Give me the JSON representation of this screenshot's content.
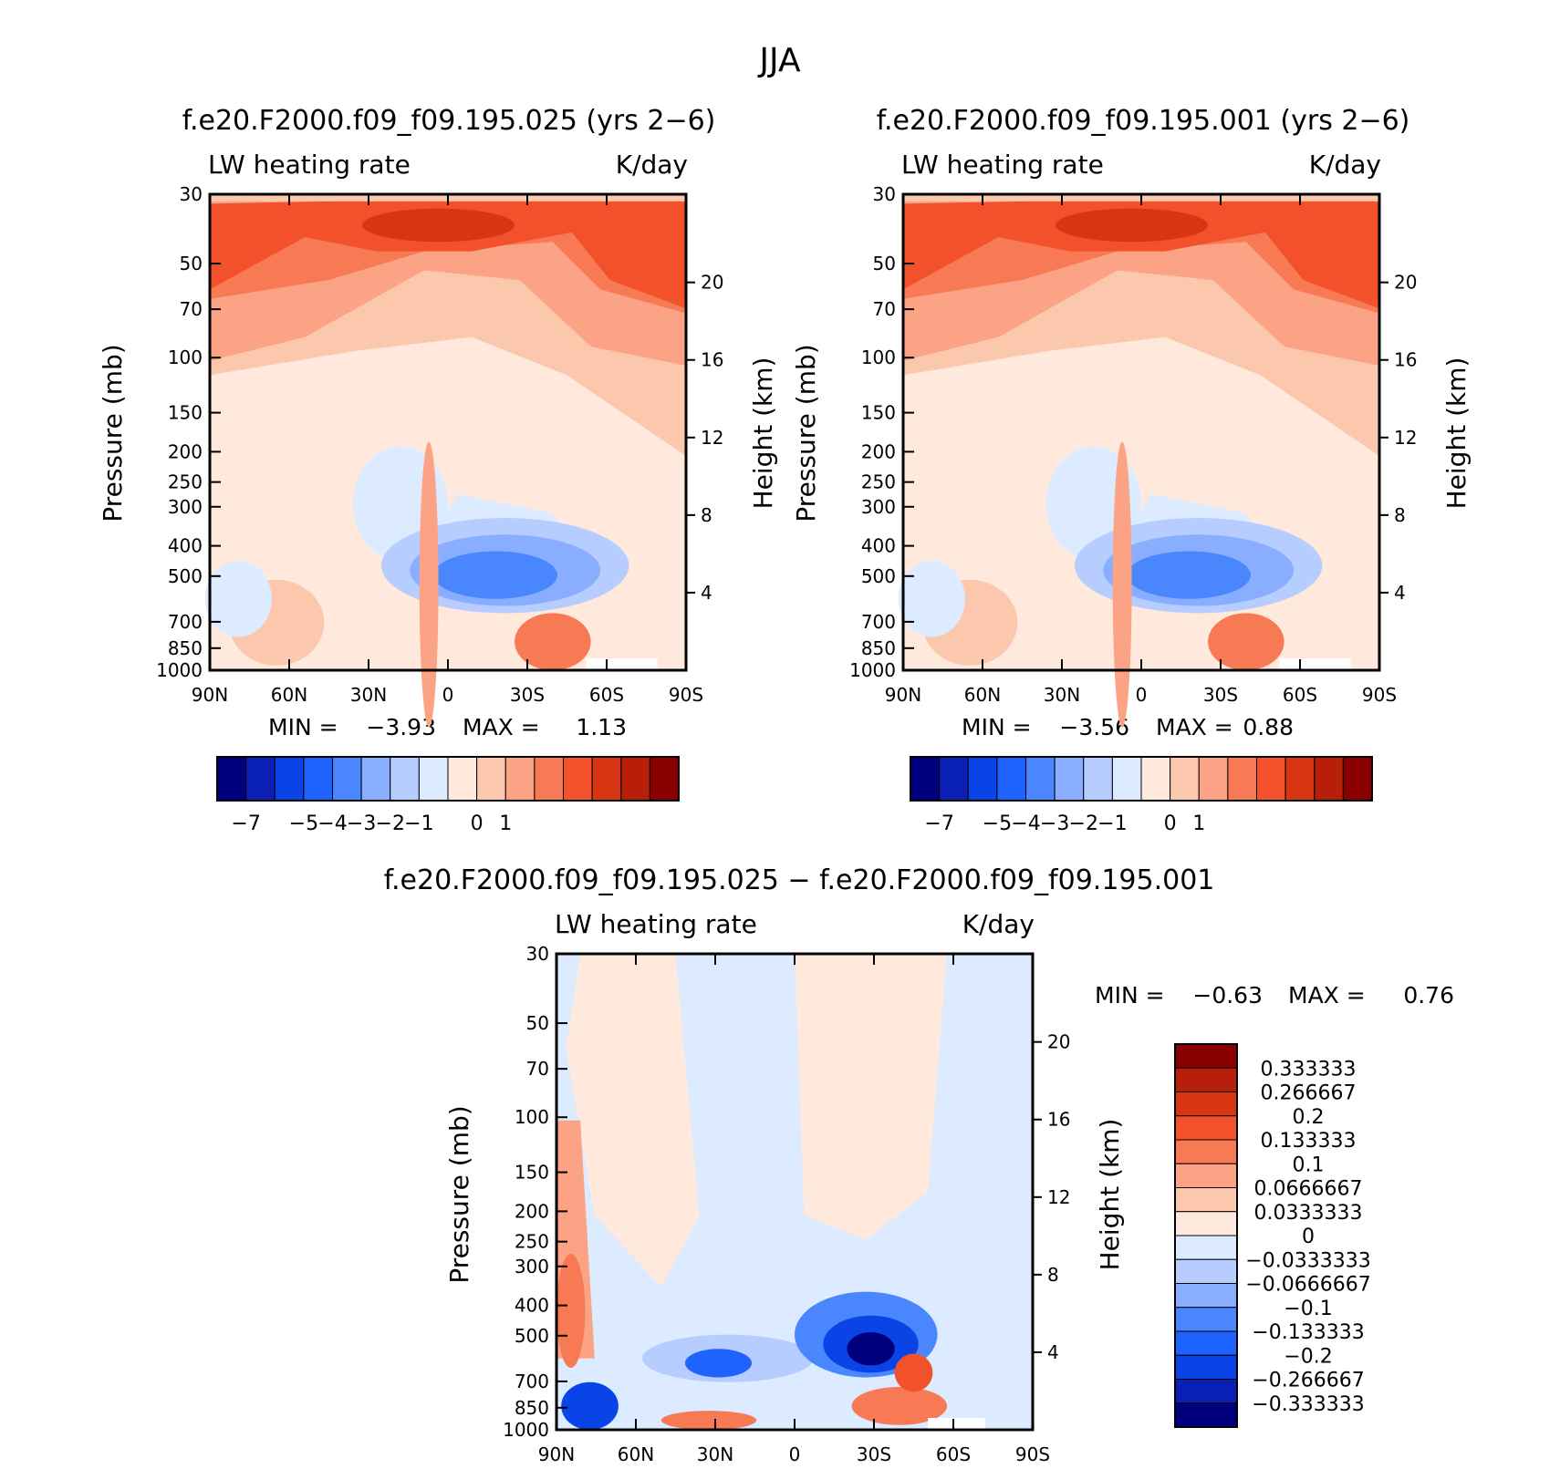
{
  "page_title": "JJA",
  "colors": {
    "abs": [
      "#00007f",
      "#0a1fb5",
      "#0a44e6",
      "#1f63ff",
      "#4a87ff",
      "#8aaeff",
      "#b7cdff",
      "#dcebff",
      "#fee9dc",
      "#fcc8ad",
      "#fba384",
      "#f77a54",
      "#f2512b",
      "#d83515",
      "#b71f0a",
      "#8a0000"
    ],
    "diff": [
      "#00007f",
      "#0a1fb5",
      "#0a44e6",
      "#1f63ff",
      "#4a87ff",
      "#8aaeff",
      "#b7cdff",
      "#dcebff",
      "#fee9dc",
      "#fcc8ad",
      "#fba384",
      "#f77a54",
      "#f2512b",
      "#d83515",
      "#b71f0a",
      "#8a0000"
    ]
  },
  "panels": [
    {
      "title": "f.e20.F2000.f09_f09.195.025 (yrs 2−6)",
      "left_label": "LW heating rate",
      "right_label": "K/day",
      "ylabel": "Pressure (mb)",
      "ylabel2": "Height (km)",
      "min_label": "MIN =",
      "min_value": "−3.93",
      "max_label": "MAX =",
      "max_value": "1.13"
    },
    {
      "title": "f.e20.F2000.f09_f09.195.001 (yrs 2−6)",
      "left_label": "LW heating rate",
      "right_label": "K/day",
      "ylabel": "Pressure (mb)",
      "ylabel2": "Height (km)",
      "min_label": "MIN =",
      "min_value": "−3.56",
      "max_label": "MAX =",
      "max_value": "0.88"
    },
    {
      "title": "f.e20.F2000.f09_f09.195.025 − f.e20.F2000.f09_f09.195.001",
      "left_label": "LW heating rate",
      "right_label": "K/day",
      "ylabel": "Pressure (mb)",
      "ylabel2": "Height (km)",
      "min_label": "MIN =",
      "min_value": "−0.63",
      "max_label": "MAX =",
      "max_value": "0.76"
    }
  ],
  "chart_data": [
    {
      "type": "heatmap",
      "title": "f.e20.F2000.f09_f09.195.025 (yrs 2−6)",
      "xlabel": "",
      "ylabel": "Pressure (mb)",
      "y2label": "Height (km)",
      "x_ticks": [
        "90N",
        "60N",
        "30N",
        "0",
        "30S",
        "60S",
        "90S"
      ],
      "y_ticks": [
        "30",
        "50",
        "70",
        "100",
        "150",
        "200",
        "250",
        "300",
        "400",
        "500",
        "700",
        "850",
        "1000"
      ],
      "y2_ticks": [
        "20",
        "16",
        "12",
        "8",
        "4"
      ],
      "colorbar_labels": [
        "−7",
        "−5",
        "−4",
        "−3",
        "−2",
        "−1",
        "0",
        "1"
      ],
      "colorbar_orientation": "horizontal",
      "y_scale": "log",
      "ylim": [
        1000,
        30
      ],
      "min": -3.93,
      "max": 1.13
    },
    {
      "type": "heatmap",
      "title": "f.e20.F2000.f09_f09.195.001 (yrs 2−6)",
      "xlabel": "",
      "ylabel": "Pressure (mb)",
      "y2label": "Height (km)",
      "x_ticks": [
        "90N",
        "60N",
        "30N",
        "0",
        "30S",
        "60S",
        "90S"
      ],
      "y_ticks": [
        "30",
        "50",
        "70",
        "100",
        "150",
        "200",
        "250",
        "300",
        "400",
        "500",
        "700",
        "850",
        "1000"
      ],
      "y2_ticks": [
        "20",
        "16",
        "12",
        "8",
        "4"
      ],
      "colorbar_labels": [
        "−7",
        "−5",
        "−4",
        "−3",
        "−2",
        "−1",
        "0",
        "1"
      ],
      "colorbar_orientation": "horizontal",
      "y_scale": "log",
      "ylim": [
        1000,
        30
      ],
      "min": -3.56,
      "max": 0.88
    },
    {
      "type": "heatmap",
      "title": "f.e20.F2000.f09_f09.195.025 − f.e20.F2000.f09_f09.195.001",
      "xlabel": "",
      "ylabel": "Pressure (mb)",
      "y2label": "Height (km)",
      "x_ticks": [
        "90N",
        "60N",
        "30N",
        "0",
        "30S",
        "60S",
        "90S"
      ],
      "y_ticks": [
        "30",
        "50",
        "70",
        "100",
        "150",
        "200",
        "250",
        "300",
        "400",
        "500",
        "700",
        "850",
        "1000"
      ],
      "y2_ticks": [
        "20",
        "16",
        "12",
        "8",
        "4"
      ],
      "colorbar_labels": [
        "0.333333",
        "0.266667",
        "0.2",
        "0.133333",
        "0.1",
        "0.0666667",
        "0.0333333",
        "0",
        "−0.0333333",
        "−0.0666667",
        "−0.1",
        "−0.133333",
        "−0.2",
        "−0.266667",
        "−0.333333"
      ],
      "colorbar_orientation": "vertical",
      "y_scale": "log",
      "ylim": [
        1000,
        30
      ],
      "min": -0.63,
      "max": 0.76
    }
  ]
}
